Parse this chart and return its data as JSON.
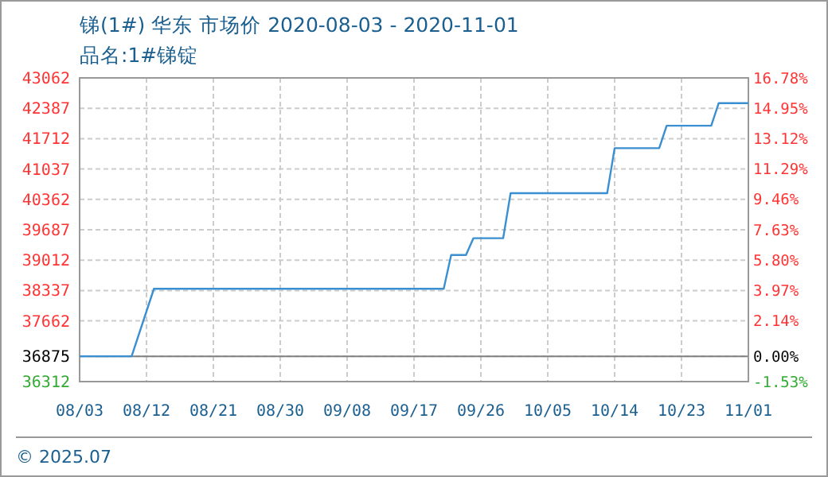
{
  "chart_data": {
    "type": "line",
    "title": "锑(1#) 华东 市场价 2020-08-03 - 2020-11-01",
    "subtitle": "品名:1#锑锭",
    "x": [
      "2020-08-03",
      "2020-08-10",
      "2020-08-13",
      "2020-09-21",
      "2020-09-22",
      "2020-09-24",
      "2020-09-25",
      "2020-09-29",
      "2020-09-30",
      "2020-10-13",
      "2020-10-14",
      "2020-10-20",
      "2020-10-21",
      "2020-10-27",
      "2020-10-28",
      "2020-11-01"
    ],
    "series": [
      {
        "color": "#3a8fd0",
        "values": [
          36875,
          36875,
          38375,
          38375,
          39125,
          39125,
          39500,
          39500,
          40500,
          40500,
          41500,
          41500,
          42000,
          42000,
          42500,
          42500
        ]
      }
    ],
    "xlim": [
      "2020-08-03",
      "2020-11-01"
    ],
    "xticks": [
      {
        "value": "2020-08-03",
        "label": "08/03"
      },
      {
        "value": "2020-08-12",
        "label": "08/12"
      },
      {
        "value": "2020-08-21",
        "label": "08/21"
      },
      {
        "value": "2020-08-30",
        "label": "08/30"
      },
      {
        "value": "2020-09-08",
        "label": "09/08"
      },
      {
        "value": "2020-09-17",
        "label": "09/17"
      },
      {
        "value": "2020-09-26",
        "label": "09/26"
      },
      {
        "value": "2020-10-05",
        "label": "10/05"
      },
      {
        "value": "2020-10-14",
        "label": "10/14"
      },
      {
        "value": "2020-10-23",
        "label": "10/23"
      },
      {
        "value": "2020-11-01",
        "label": "11/01"
      }
    ],
    "ylim": [
      36312,
      43062
    ],
    "yticks": [
      36312,
      36875,
      37662,
      38337,
      39012,
      39687,
      40362,
      41037,
      41712,
      42387,
      43062
    ],
    "y2lim": [
      -1.53,
      16.78
    ],
    "y2ticks": [
      {
        "value": -1.53,
        "label": "-1.53%"
      },
      {
        "value": 0,
        "label": "0.00%"
      },
      {
        "value": 2.14,
        "label": "2.14%"
      },
      {
        "value": 3.97,
        "label": "3.97%"
      },
      {
        "value": 5.8,
        "label": "5.80%"
      },
      {
        "value": 7.63,
        "label": "7.63%"
      },
      {
        "value": 9.46,
        "label": "9.46%"
      },
      {
        "value": 11.29,
        "label": "11.29%"
      },
      {
        "value": 13.12,
        "label": "13.12%"
      },
      {
        "value": 14.95,
        "label": "14.95%"
      },
      {
        "value": 16.78,
        "label": "16.78%"
      }
    ],
    "ref_lines": [
      {
        "axis": "y",
        "value": 36875,
        "color": "#808080"
      }
    ],
    "grid": true,
    "annotations": [
      "© 2025.07"
    ]
  }
}
